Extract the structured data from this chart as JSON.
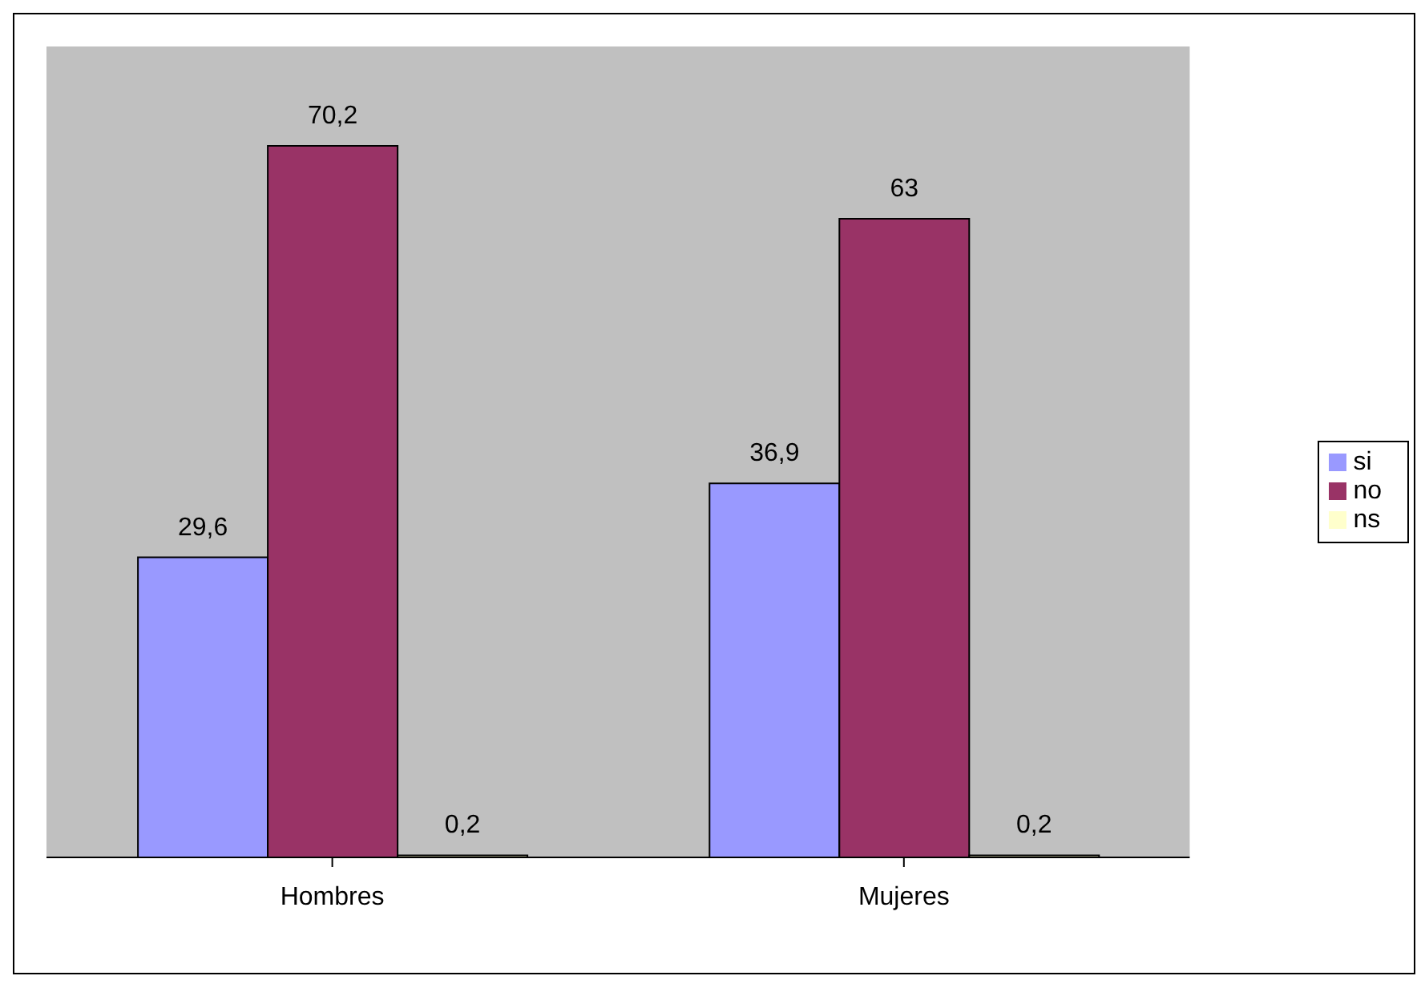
{
  "chart_data": {
    "type": "bar",
    "categories": [
      "Hombres",
      "Mujeres"
    ],
    "series": [
      {
        "name": "si",
        "color": "#9999ff",
        "values": [
          29.6,
          36.9
        ],
        "value_labels": [
          "29,6",
          "36,9"
        ]
      },
      {
        "name": "no",
        "color": "#993366",
        "values": [
          70.2,
          63
        ],
        "value_labels": [
          "70,2",
          "63"
        ]
      },
      {
        "name": "ns",
        "color": "#ffffcc",
        "values": [
          0.2,
          0.2
        ],
        "value_labels": [
          "0,2",
          "0,2"
        ]
      }
    ],
    "ylim": [
      0,
      80
    ],
    "tick_labels": "x",
    "legend": "right"
  }
}
